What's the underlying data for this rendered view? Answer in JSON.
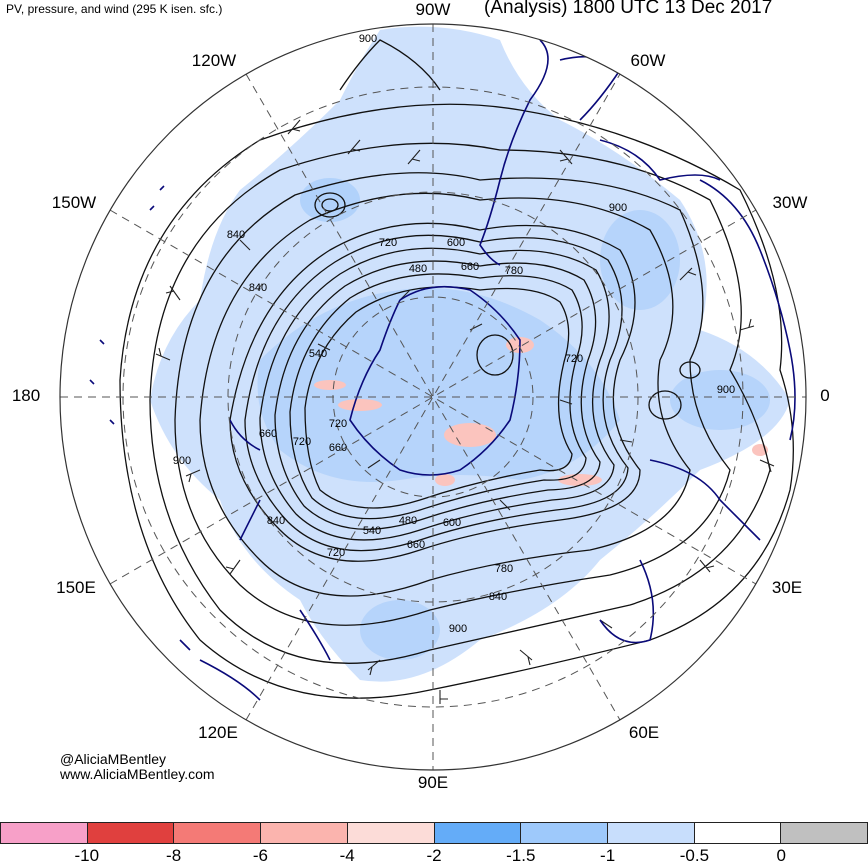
{
  "header": {
    "subtitle": "PV, pressure, and wind (295 K isen. sfc.)",
    "title": "(Analysis) 1800 UTC 13 Dec 2017"
  },
  "map": {
    "projection": "polar stereographic",
    "longitude_labels": {
      "top": "90W",
      "top_left": "120W",
      "top_right": "60W",
      "left_upper": "150W",
      "right_upper": "30W",
      "left": "180",
      "right": "0",
      "left_lower": "150E",
      "right_lower": "30E",
      "bottom_left": "120E",
      "bottom_right": "60E",
      "bottom": "90E"
    },
    "contour_labels": [
      "900",
      "840",
      "720",
      "600",
      "480",
      "660",
      "780",
      "540",
      "720",
      "900",
      "660",
      "720",
      "660",
      "900",
      "840",
      "540",
      "480",
      "600",
      "720",
      "660",
      "780",
      "840",
      "900"
    ],
    "colors": {
      "pv_light_blue": "#c6dcfc",
      "pv_mid_blue": "#9ec8fa",
      "pv_dark_blue": "#6aaaf6",
      "pv_pink": "#fbd4cf",
      "coastline": "#0a0a7a",
      "contour": "#111111",
      "graticule": "#555555"
    }
  },
  "credits": {
    "handle": "@AliciaMBentley",
    "website": "www.AliciaMBentley.com"
  },
  "colorbar": {
    "colors": [
      "#f7a0c8",
      "#e0403e",
      "#f47a76",
      "#fbb4ae",
      "#fcdcd8",
      "#64acf8",
      "#9ec9fb",
      "#c8defc",
      "#ffffff",
      "#c0c0c0"
    ],
    "ticks": [
      "-10",
      "-8",
      "-6",
      "-4",
      "-2",
      "-1.5",
      "-1",
      "-0.5",
      "0"
    ]
  }
}
